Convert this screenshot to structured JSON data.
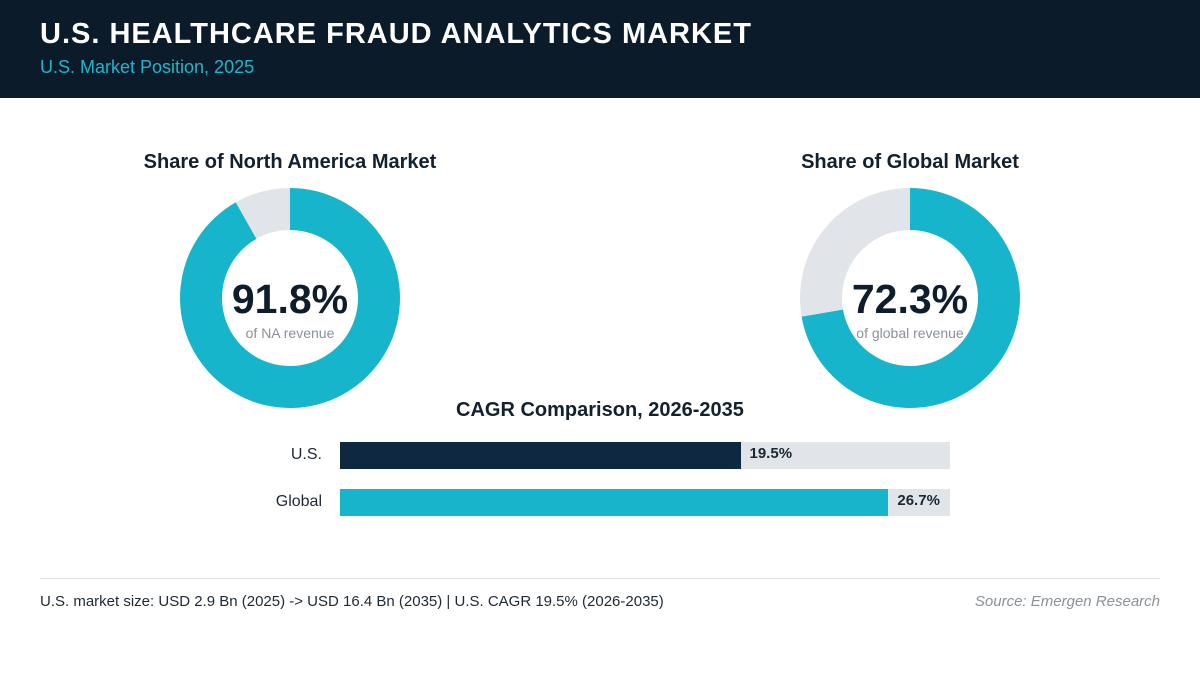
{
  "header": {
    "title": "U.S. HEALTHCARE FRAUD ANALYTICS MARKET",
    "subtitle": "U.S. Market Position, 2025"
  },
  "colors": {
    "header_bg": "#0b1b2a",
    "accent": "#16b5cb",
    "navy": "#0e2840",
    "track": "#e1e5ea"
  },
  "chart_data": [
    {
      "type": "pie",
      "title": "Share of North America Market",
      "value_label": "91.8%",
      "caption": "of NA revenue",
      "values": [
        91.8,
        8.2
      ],
      "colors": [
        "#16b5cb",
        "#e1e5ea"
      ]
    },
    {
      "type": "pie",
      "title": "Share of Global Market",
      "value_label": "72.3%",
      "caption": "of global revenue",
      "values": [
        72.3,
        27.7
      ],
      "colors": [
        "#16b5cb",
        "#e1e5ea"
      ]
    },
    {
      "type": "bar",
      "orientation": "horizontal",
      "title": "CAGR Comparison, 2026-2035",
      "categories": [
        "U.S.",
        "Global"
      ],
      "values": [
        19.5,
        26.7
      ],
      "value_labels": [
        "19.5%",
        "26.7%"
      ],
      "xlim": [
        0,
        29.7
      ],
      "colors": [
        "#0e2840",
        "#16b5cb"
      ]
    }
  ],
  "footer": {
    "note": "U.S. market size: USD 2.9 Bn (2025) -> USD 16.4 Bn (2035)  |  U.S. CAGR 19.5% (2026-2035)",
    "source": "Source: Emergen Research"
  }
}
